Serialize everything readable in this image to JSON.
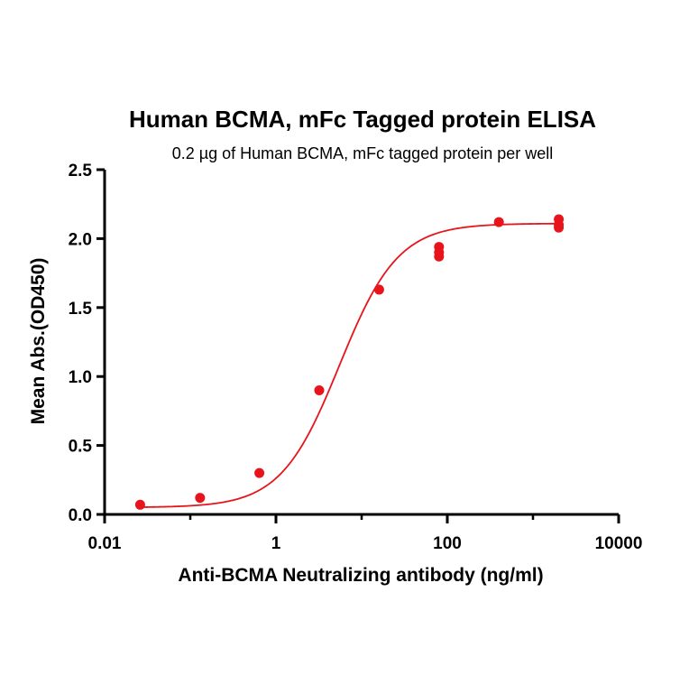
{
  "chart_data": {
    "type": "scatter",
    "title": "Human BCMA, mFc Tagged protein ELISA",
    "subtitle": "0.2 µg of Human BCMA, mFc tagged protein per well",
    "xlabel": "Anti-BCMA Neutralizing antibody (ng/ml)",
    "ylabel": "Mean Abs.(OD450)",
    "xscale": "log",
    "xlim": [
      0.01,
      10000
    ],
    "ylim": [
      0,
      2.5
    ],
    "xticks": [
      0.01,
      1,
      100,
      10000
    ],
    "xtick_labels": [
      "0.01",
      "1",
      "100",
      "10000"
    ],
    "yticks": [
      0,
      0.5,
      1.0,
      1.5,
      2.0,
      2.5
    ],
    "ytick_labels": [
      "0.0",
      "0.5",
      "1.0",
      "1.5",
      "2.0",
      "2.5"
    ],
    "grid": false,
    "series": [
      {
        "points": [
          {
            "x": 0.026,
            "y": 0.07
          },
          {
            "x": 0.13,
            "y": 0.12
          },
          {
            "x": 0.64,
            "y": 0.3
          },
          {
            "x": 3.2,
            "y": 0.9
          },
          {
            "x": 16,
            "y": 1.63
          },
          {
            "x": 80,
            "y": 1.94
          },
          {
            "x": 80,
            "y": 1.9
          },
          {
            "x": 80,
            "y": 1.87
          },
          {
            "x": 400,
            "y": 2.12
          },
          {
            "x": 2000,
            "y": 2.14
          },
          {
            "x": 2000,
            "y": 2.1
          },
          {
            "x": 2000,
            "y": 2.08
          }
        ]
      }
    ],
    "fit_curve": {
      "model": "4PL",
      "bottom": 0.05,
      "top": 2.11,
      "ec50": 5.5,
      "hill": 1.27
    },
    "color": "#e8141b"
  }
}
